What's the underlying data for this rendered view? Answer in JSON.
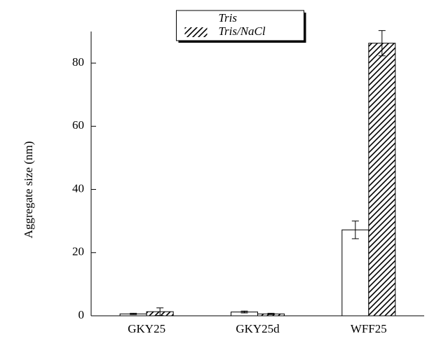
{
  "chart_data": {
    "type": "bar",
    "y_label": "Aggregate size (nm)",
    "categories": [
      "GKY25",
      "GKY25d",
      "WFF25"
    ],
    "series": [
      {
        "name": "Tris",
        "color": "#ffffff",
        "hatch": false,
        "values": [
          0.6,
          1.2,
          27.2
        ],
        "errors": [
          0.2,
          0.3,
          2.8
        ]
      },
      {
        "name": "Tris/NaCl",
        "color": "#ffffff",
        "hatch": true,
        "values": [
          1.3,
          0.6,
          86.3
        ],
        "errors": [
          1.2,
          0.2,
          4.0
        ]
      }
    ],
    "ylim": [
      0,
      90
    ],
    "yticks": [
      0,
      20,
      40,
      60,
      80
    ],
    "grid": false,
    "legend": "upper center"
  }
}
